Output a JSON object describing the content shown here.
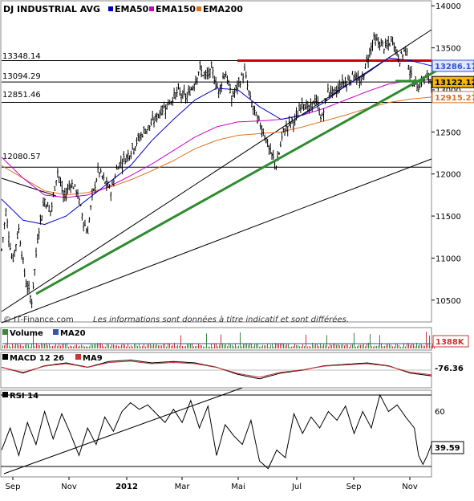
{
  "chart_data": {
    "type": "line",
    "title": "DJ INDUSTRIAL AVG",
    "legend": [
      {
        "label": "EMA50",
        "color": "#0000cc"
      },
      {
        "label": "EMA150",
        "color": "#cc00cc"
      },
      {
        "label": "EMA200",
        "color": "#e07020"
      }
    ],
    "x_tick_labels": [
      "Sep",
      "Nov",
      "2012",
      "Mar",
      "Mai",
      "Jul",
      "Sep",
      "Nov"
    ],
    "y_ticks": [
      10500,
      11000,
      11500,
      12000,
      12500,
      13000,
      13500,
      14000
    ],
    "ylim": [
      10250,
      14050
    ],
    "horizontal_levels": [
      13348.14,
      13094.29,
      12851.46,
      12080.57
    ],
    "highlighted_level": 13348.14,
    "price_tags": [
      {
        "value": "13286.17",
        "color": "#3355cc",
        "bg": "#dfe6ff",
        "num": 13286.17
      },
      {
        "value": "13122.12",
        "color": "#000000",
        "bg": "#f5b800",
        "num": 13122.12
      },
      {
        "value": "12915.27",
        "color": "#e07020",
        "bg": "#ffffff",
        "num": 12915.27
      }
    ],
    "price_series_range": [
      "2011-08-22",
      "2012-11-02"
    ],
    "price_anchors": [
      [
        0,
        11100
      ],
      [
        0.01,
        11550
      ],
      [
        0.025,
        10950
      ],
      [
        0.04,
        11350
      ],
      [
        0.055,
        10750
      ],
      [
        0.07,
        10480
      ],
      [
        0.085,
        11300
      ],
      [
        0.1,
        11700
      ],
      [
        0.115,
        11550
      ],
      [
        0.13,
        12050
      ],
      [
        0.145,
        11700
      ],
      [
        0.16,
        11900
      ],
      [
        0.175,
        11800
      ],
      [
        0.19,
        11450
      ],
      [
        0.2,
        11300
      ],
      [
        0.21,
        11700
      ],
      [
        0.225,
        12050
      ],
      [
        0.24,
        11900
      ],
      [
        0.255,
        11800
      ],
      [
        0.27,
        12100
      ],
      [
        0.29,
        12200
      ],
      [
        0.31,
        12350
      ],
      [
        0.33,
        12500
      ],
      [
        0.35,
        12600
      ],
      [
        0.37,
        12750
      ],
      [
        0.39,
        12850
      ],
      [
        0.41,
        12980
      ],
      [
        0.43,
        12900
      ],
      [
        0.445,
        13050
      ],
      [
        0.46,
        13250
      ],
      [
        0.475,
        13150
      ],
      [
        0.49,
        13230
      ],
      [
        0.505,
        12980
      ],
      [
        0.52,
        13230
      ],
      [
        0.535,
        12900
      ],
      [
        0.55,
        13050
      ],
      [
        0.565,
        13220
      ],
      [
        0.58,
        12850
      ],
      [
        0.595,
        12650
      ],
      [
        0.61,
        12500
      ],
      [
        0.625,
        12250
      ],
      [
        0.64,
        12100
      ],
      [
        0.655,
        12500
      ],
      [
        0.67,
        12600
      ],
      [
        0.685,
        12650
      ],
      [
        0.7,
        12880
      ],
      [
        0.715,
        12750
      ],
      [
        0.73,
        12900
      ],
      [
        0.745,
        12650
      ],
      [
        0.76,
        13000
      ],
      [
        0.775,
        12950
      ],
      [
        0.79,
        13080
      ],
      [
        0.805,
        13100
      ],
      [
        0.82,
        13200
      ],
      [
        0.835,
        13050
      ],
      [
        0.85,
        13350
      ],
      [
        0.865,
        13600
      ],
      [
        0.88,
        13550
      ],
      [
        0.895,
        13500
      ],
      [
        0.91,
        13600
      ],
      [
        0.925,
        13350
      ],
      [
        0.94,
        13500
      ],
      [
        0.955,
        13100
      ],
      [
        0.97,
        13050
      ],
      [
        0.985,
        13150
      ],
      [
        1.0,
        13122
      ]
    ],
    "ema50_anchors": [
      [
        0,
        11700
      ],
      [
        0.05,
        11450
      ],
      [
        0.1,
        11400
      ],
      [
        0.15,
        11500
      ],
      [
        0.2,
        11700
      ],
      [
        0.25,
        11900
      ],
      [
        0.3,
        12100
      ],
      [
        0.35,
        12400
      ],
      [
        0.4,
        12650
      ],
      [
        0.45,
        12880
      ],
      [
        0.5,
        13020
      ],
      [
        0.55,
        13000
      ],
      [
        0.6,
        12800
      ],
      [
        0.65,
        12650
      ],
      [
        0.7,
        12700
      ],
      [
        0.75,
        12850
      ],
      [
        0.8,
        13050
      ],
      [
        0.85,
        13200
      ],
      [
        0.9,
        13380
      ],
      [
        0.95,
        13350
      ],
      [
        1.0,
        13286
      ]
    ],
    "ema150_anchors": [
      [
        0,
        12200
      ],
      [
        0.05,
        11950
      ],
      [
        0.1,
        11750
      ],
      [
        0.15,
        11720
      ],
      [
        0.2,
        11750
      ],
      [
        0.25,
        11850
      ],
      [
        0.3,
        11980
      ],
      [
        0.35,
        12120
      ],
      [
        0.4,
        12280
      ],
      [
        0.45,
        12440
      ],
      [
        0.5,
        12560
      ],
      [
        0.55,
        12620
      ],
      [
        0.6,
        12630
      ],
      [
        0.65,
        12650
      ],
      [
        0.7,
        12700
      ],
      [
        0.75,
        12780
      ],
      [
        0.8,
        12880
      ],
      [
        0.85,
        12980
      ],
      [
        0.9,
        13070
      ],
      [
        0.95,
        13110
      ],
      [
        1.0,
        13120
      ]
    ],
    "ema200_anchors": [
      [
        0,
        12100
      ],
      [
        0.1,
        11800
      ],
      [
        0.15,
        11750
      ],
      [
        0.2,
        11780
      ],
      [
        0.25,
        11840
      ],
      [
        0.3,
        11930
      ],
      [
        0.35,
        12040
      ],
      [
        0.4,
        12160
      ],
      [
        0.45,
        12300
      ],
      [
        0.5,
        12400
      ],
      [
        0.55,
        12460
      ],
      [
        0.6,
        12480
      ],
      [
        0.65,
        12500
      ],
      [
        0.7,
        12560
      ],
      [
        0.75,
        12630
      ],
      [
        0.8,
        12700
      ],
      [
        0.85,
        12780
      ],
      [
        0.9,
        12850
      ],
      [
        0.95,
        12890
      ],
      [
        1.0,
        12915
      ]
    ],
    "volume_label": "Volume",
    "volume_ma_label": "MA20",
    "volume_value": "1388K",
    "macd_label": "MACD 12 26",
    "macd_signal_label": "MA9",
    "macd_value": "-76.36",
    "rsi_label": "RSI 14",
    "rsi_value": "39.59",
    "rsi_tick": "60",
    "rsi_anchors": [
      [
        0,
        35
      ],
      [
        0.02,
        55
      ],
      [
        0.04,
        30
      ],
      [
        0.06,
        60
      ],
      [
        0.08,
        40
      ],
      [
        0.1,
        70
      ],
      [
        0.12,
        45
      ],
      [
        0.14,
        68
      ],
      [
        0.16,
        50
      ],
      [
        0.18,
        30
      ],
      [
        0.2,
        55
      ],
      [
        0.22,
        40
      ],
      [
        0.24,
        65
      ],
      [
        0.26,
        52
      ],
      [
        0.28,
        70
      ],
      [
        0.3,
        78
      ],
      [
        0.32,
        72
      ],
      [
        0.34,
        76
      ],
      [
        0.36,
        68
      ],
      [
        0.38,
        60
      ],
      [
        0.4,
        72
      ],
      [
        0.42,
        60
      ],
      [
        0.44,
        80
      ],
      [
        0.46,
        55
      ],
      [
        0.48,
        75
      ],
      [
        0.5,
        30
      ],
      [
        0.52,
        58
      ],
      [
        0.54,
        48
      ],
      [
        0.56,
        40
      ],
      [
        0.58,
        62
      ],
      [
        0.6,
        25
      ],
      [
        0.62,
        18
      ],
      [
        0.64,
        35
      ],
      [
        0.66,
        28
      ],
      [
        0.68,
        68
      ],
      [
        0.7,
        50
      ],
      [
        0.72,
        65
      ],
      [
        0.74,
        55
      ],
      [
        0.76,
        70
      ],
      [
        0.78,
        62
      ],
      [
        0.8,
        75
      ],
      [
        0.82,
        50
      ],
      [
        0.84,
        70
      ],
      [
        0.86,
        55
      ],
      [
        0.88,
        85
      ],
      [
        0.9,
        70
      ],
      [
        0.92,
        76
      ],
      [
        0.94,
        65
      ],
      [
        0.96,
        55
      ],
      [
        0.97,
        30
      ],
      [
        0.98,
        22
      ],
      [
        0.99,
        30
      ],
      [
        1.0,
        40
      ]
    ],
    "macd_anchors": [
      [
        0,
        0.2
      ],
      [
        0.05,
        -0.2
      ],
      [
        0.1,
        0.3
      ],
      [
        0.15,
        0.5
      ],
      [
        0.2,
        0.2
      ],
      [
        0.25,
        0.6
      ],
      [
        0.3,
        0.7
      ],
      [
        0.35,
        0.5
      ],
      [
        0.4,
        0.6
      ],
      [
        0.45,
        0.5
      ],
      [
        0.5,
        0.2
      ],
      [
        0.55,
        -0.3
      ],
      [
        0.6,
        -0.6
      ],
      [
        0.65,
        -0.2
      ],
      [
        0.7,
        0.0
      ],
      [
        0.75,
        0.3
      ],
      [
        0.8,
        0.4
      ],
      [
        0.85,
        0.5
      ],
      [
        0.9,
        0.3
      ],
      [
        0.95,
        -0.2
      ],
      [
        1.0,
        -0.4
      ]
    ]
  },
  "credits": {
    "brand": "© IT-Finance.com",
    "disclaimer": "Les informations sont données à titre indicatif et sont différées."
  }
}
